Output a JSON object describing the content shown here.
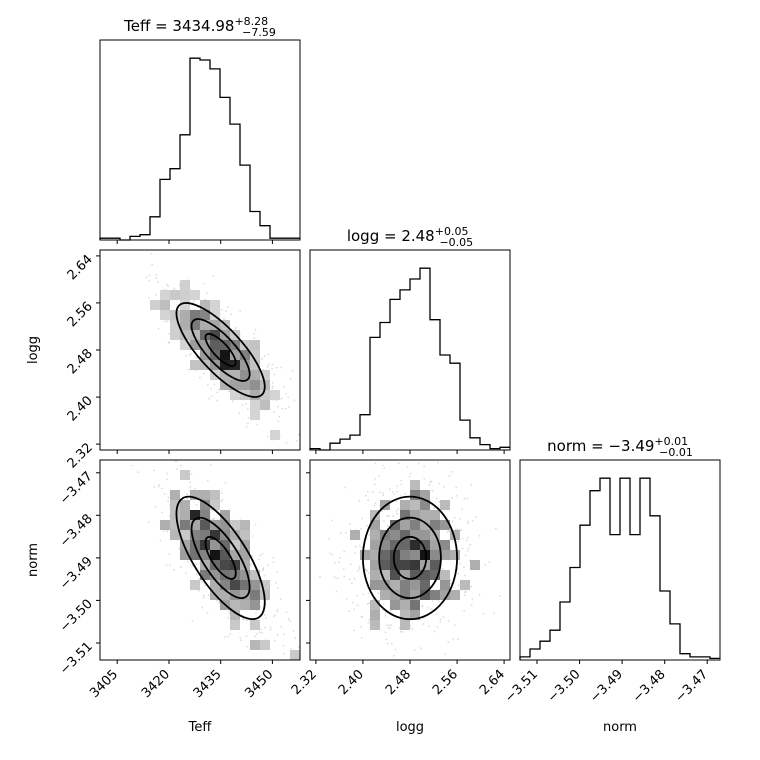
{
  "chart_data": {
    "type": "corner",
    "params": [
      "Teff",
      "logg",
      "norm"
    ],
    "axis_labels": [
      "Teff",
      "logg",
      "norm"
    ],
    "titles": [
      {
        "param": "Teff",
        "median": "3434.98",
        "plus": "+8.28",
        "minus": "−7.59"
      },
      {
        "param": "logg",
        "median": "2.48",
        "plus": "+0.05",
        "minus": "−0.05"
      },
      {
        "param": "norm",
        "median": "−3.49",
        "plus": "+0.01",
        "minus": "−0.01"
      }
    ],
    "ranges": [
      [
        3400,
        3458
      ],
      [
        2.31,
        2.65
      ],
      [
        -3.514,
        -3.467
      ]
    ],
    "ticks": {
      "Teff": [
        3405,
        3420,
        3435,
        3450
      ],
      "logg": [
        2.32,
        2.4,
        2.48,
        2.56,
        2.64
      ],
      "norm": [
        -3.51,
        -3.5,
        -3.49,
        -3.48,
        -3.47
      ]
    },
    "tick_labels": {
      "Teff": [
        "3405",
        "3420",
        "3435",
        "3450"
      ],
      "logg": [
        "2.32",
        "2.40",
        "2.48",
        "2.56",
        "2.64"
      ],
      "norm": [
        "−3.51",
        "−3.50",
        "−3.49",
        "−3.48",
        "−3.47"
      ]
    },
    "histograms": {
      "Teff": {
        "bin_start": 3400,
        "bin_width": 2.9,
        "counts": [
          1,
          1,
          0,
          2,
          3,
          13,
          34,
          40,
          59,
          102,
          101,
          96,
          80,
          65,
          42,
          16,
          8,
          1,
          1,
          1
        ]
      },
      "logg": {
        "bin_start": 2.31,
        "bin_width": 0.017,
        "counts": [
          1,
          0,
          5,
          8,
          11,
          26,
          83,
          94,
          111,
          118,
          126,
          134,
          96,
          70,
          64,
          22,
          9,
          4,
          1,
          2
        ]
      },
      "norm": {
        "bin_start": -3.514,
        "bin_width": 0.00235,
        "counts": [
          2,
          7,
          12,
          19,
          37,
          59,
          86,
          108,
          116,
          80,
          116,
          80,
          116,
          92,
          44,
          23,
          4,
          2,
          2,
          1
        ]
      }
    },
    "contour_levels": 3,
    "correlations": [
      {
        "x": "Teff",
        "y": "logg",
        "center": [
          3434.98,
          2.48
        ],
        "sd": [
          8.0,
          0.05
        ],
        "rho": -0.78
      },
      {
        "x": "Teff",
        "y": "norm",
        "center": [
          3434.98,
          -3.49
        ],
        "sd": [
          8.0,
          0.009
        ],
        "rho": -0.72
      },
      {
        "x": "logg",
        "y": "norm",
        "center": [
          2.48,
          -3.49
        ],
        "sd": [
          0.05,
          0.009
        ],
        "rho": 0.0
      }
    ]
  }
}
